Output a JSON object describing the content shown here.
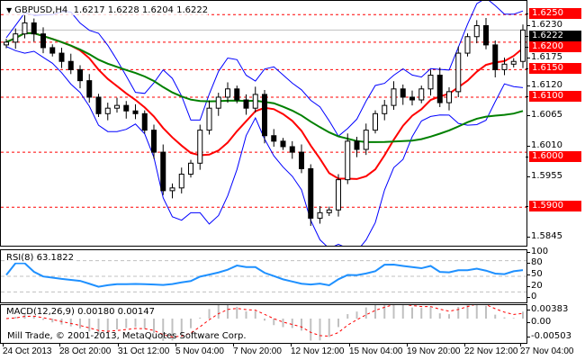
{
  "header": {
    "symbol": "GBPUSD,H4",
    "ohlc": "1.6217 1.6228 1.6204 1.6222"
  },
  "rsi": {
    "label": "RSI(8) 63.1822",
    "levels": [
      "100",
      "80",
      "50",
      "20",
      "0"
    ]
  },
  "macd": {
    "label": "MACD(12,26,9) 0.00180 0.00147",
    "levels": [
      "0.00383",
      "0.00",
      "-0.00503"
    ]
  },
  "copyright": "Mill Trade, © 2001-2013, MetaQuotes Software Corp.",
  "colors": {
    "bull": "#ffffff",
    "bear": "#000000",
    "bands": "#0000ff",
    "ma_fast": "#ff0000",
    "ma_slow": "#008000",
    "rsi": "#1e90ff",
    "level_lines": "#ff0000"
  },
  "chart_data": {
    "type": "candlestick",
    "symbol": "GBPUSD",
    "timeframe": "H4",
    "ylim": [
      1.583,
      1.6275
    ],
    "price_ticks": [
      "1.6230",
      "1.6175",
      "1.6120",
      "1.6065",
      "1.6010",
      "1.5955",
      "1.5845"
    ],
    "horizontal_levels": [
      "1.6250",
      "1.6200",
      "1.6150",
      "1.6100",
      "1.6000",
      "1.5900"
    ],
    "current_price": "1.6222",
    "x_ticks": [
      "24 Oct 2013",
      "28 Oct 20:00",
      "31 Oct 12:00",
      "5 Nov 04:00",
      "7 Nov 20:00",
      "12 Nov 12:00",
      "15 Nov 04:00",
      "19 Nov 20:00",
      "22 Nov 12:00",
      "27 Nov 04:00"
    ],
    "closes": [
      1.62,
      1.6215,
      1.6235,
      1.6215,
      1.619,
      1.618,
      1.6165,
      1.615,
      1.613,
      1.61,
      1.607,
      1.608,
      1.6085,
      1.6075,
      1.607,
      1.604,
      1.6,
      1.593,
      1.5935,
      1.596,
      1.598,
      1.604,
      1.608,
      1.61,
      1.6115,
      1.6095,
      1.608,
      1.6105,
      1.603,
      1.602,
      1.601,
      1.6,
      1.597,
      1.588,
      1.589,
      1.5895,
      1.595,
      1.602,
      1.6005,
      1.604,
      1.607,
      1.6085,
      1.6115,
      1.61,
      1.6095,
      1.6115,
      1.614,
      1.609,
      1.611,
      1.618,
      1.621,
      1.623,
      1.6195,
      1.615,
      1.616,
      1.6165,
      1.6222
    ]
  }
}
